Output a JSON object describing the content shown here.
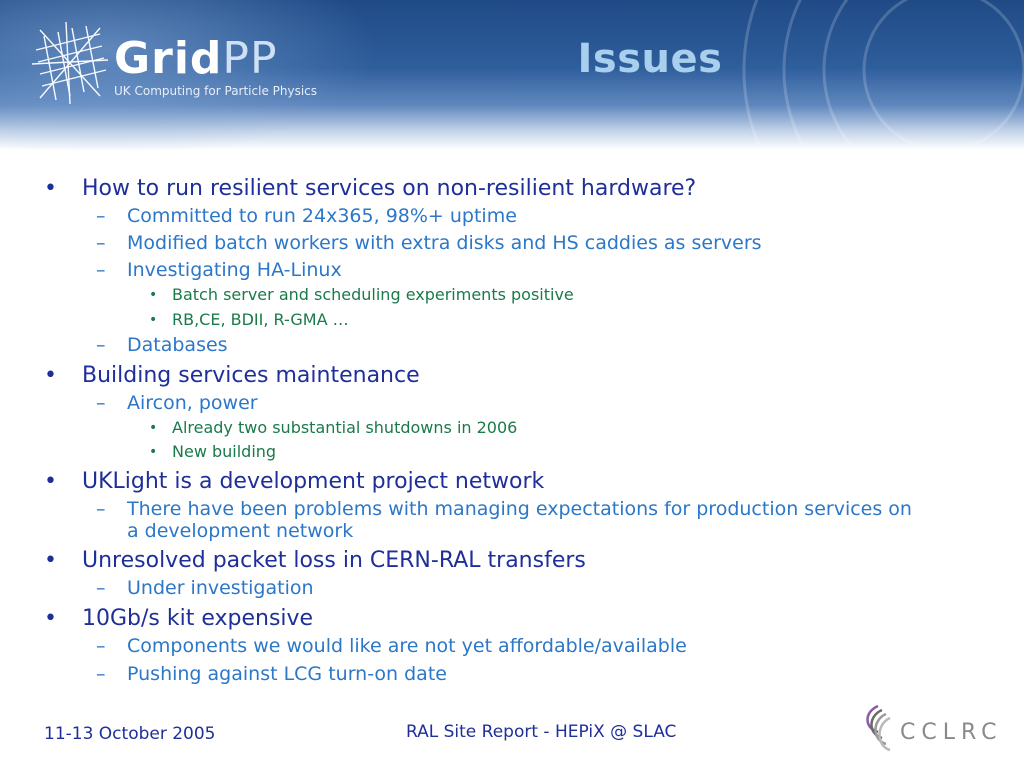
{
  "header": {
    "logo_text_grid": "Grid",
    "logo_text_pp": "PP",
    "logo_subtitle": "UK Computing for Particle Physics",
    "title": "Issues"
  },
  "items": [
    {
      "level": 1,
      "text": "How to run resilient services on non-resilient hardware?"
    },
    {
      "level": 2,
      "text": "Committed to run 24x365, 98%+ uptime"
    },
    {
      "level": 2,
      "text": "Modified batch workers with extra disks and HS caddies as servers"
    },
    {
      "level": 2,
      "text": "Investigating HA-Linux"
    },
    {
      "level": 3,
      "text": "Batch server and scheduling experiments positive"
    },
    {
      "level": 3,
      "text": "RB,CE, BDII, R-GMA …"
    },
    {
      "level": 2,
      "text": "Databases"
    },
    {
      "level": 1,
      "text": "Building services maintenance"
    },
    {
      "level": 2,
      "text": "Aircon, power"
    },
    {
      "level": 3,
      "text": "Already two substantial shutdowns in 2006"
    },
    {
      "level": 3,
      "text": "New building"
    },
    {
      "level": 1,
      "text": "UKLight is a development project network"
    },
    {
      "level": 2,
      "text": "There have been problems with managing expectations for production services on"
    },
    {
      "level": 2,
      "text": "a development network",
      "continuation": true
    },
    {
      "level": 1,
      "text": "Unresolved packet loss in CERN-RAL transfers"
    },
    {
      "level": 2,
      "text": "Under investigation"
    },
    {
      "level": 1,
      "text": "10Gb/s kit expensive"
    },
    {
      "level": 2,
      "text": "Components we would like are not yet affordable/available"
    },
    {
      "level": 2,
      "text": "Pushing against LCG turn-on date"
    }
  ],
  "bullets": {
    "level1": "•",
    "level2": "–",
    "level3": "•"
  },
  "footer": {
    "date": "11-13 October 2005",
    "center": "RAL Site Report - HEPiX @ SLAC",
    "logo_text": "CCLRC"
  }
}
